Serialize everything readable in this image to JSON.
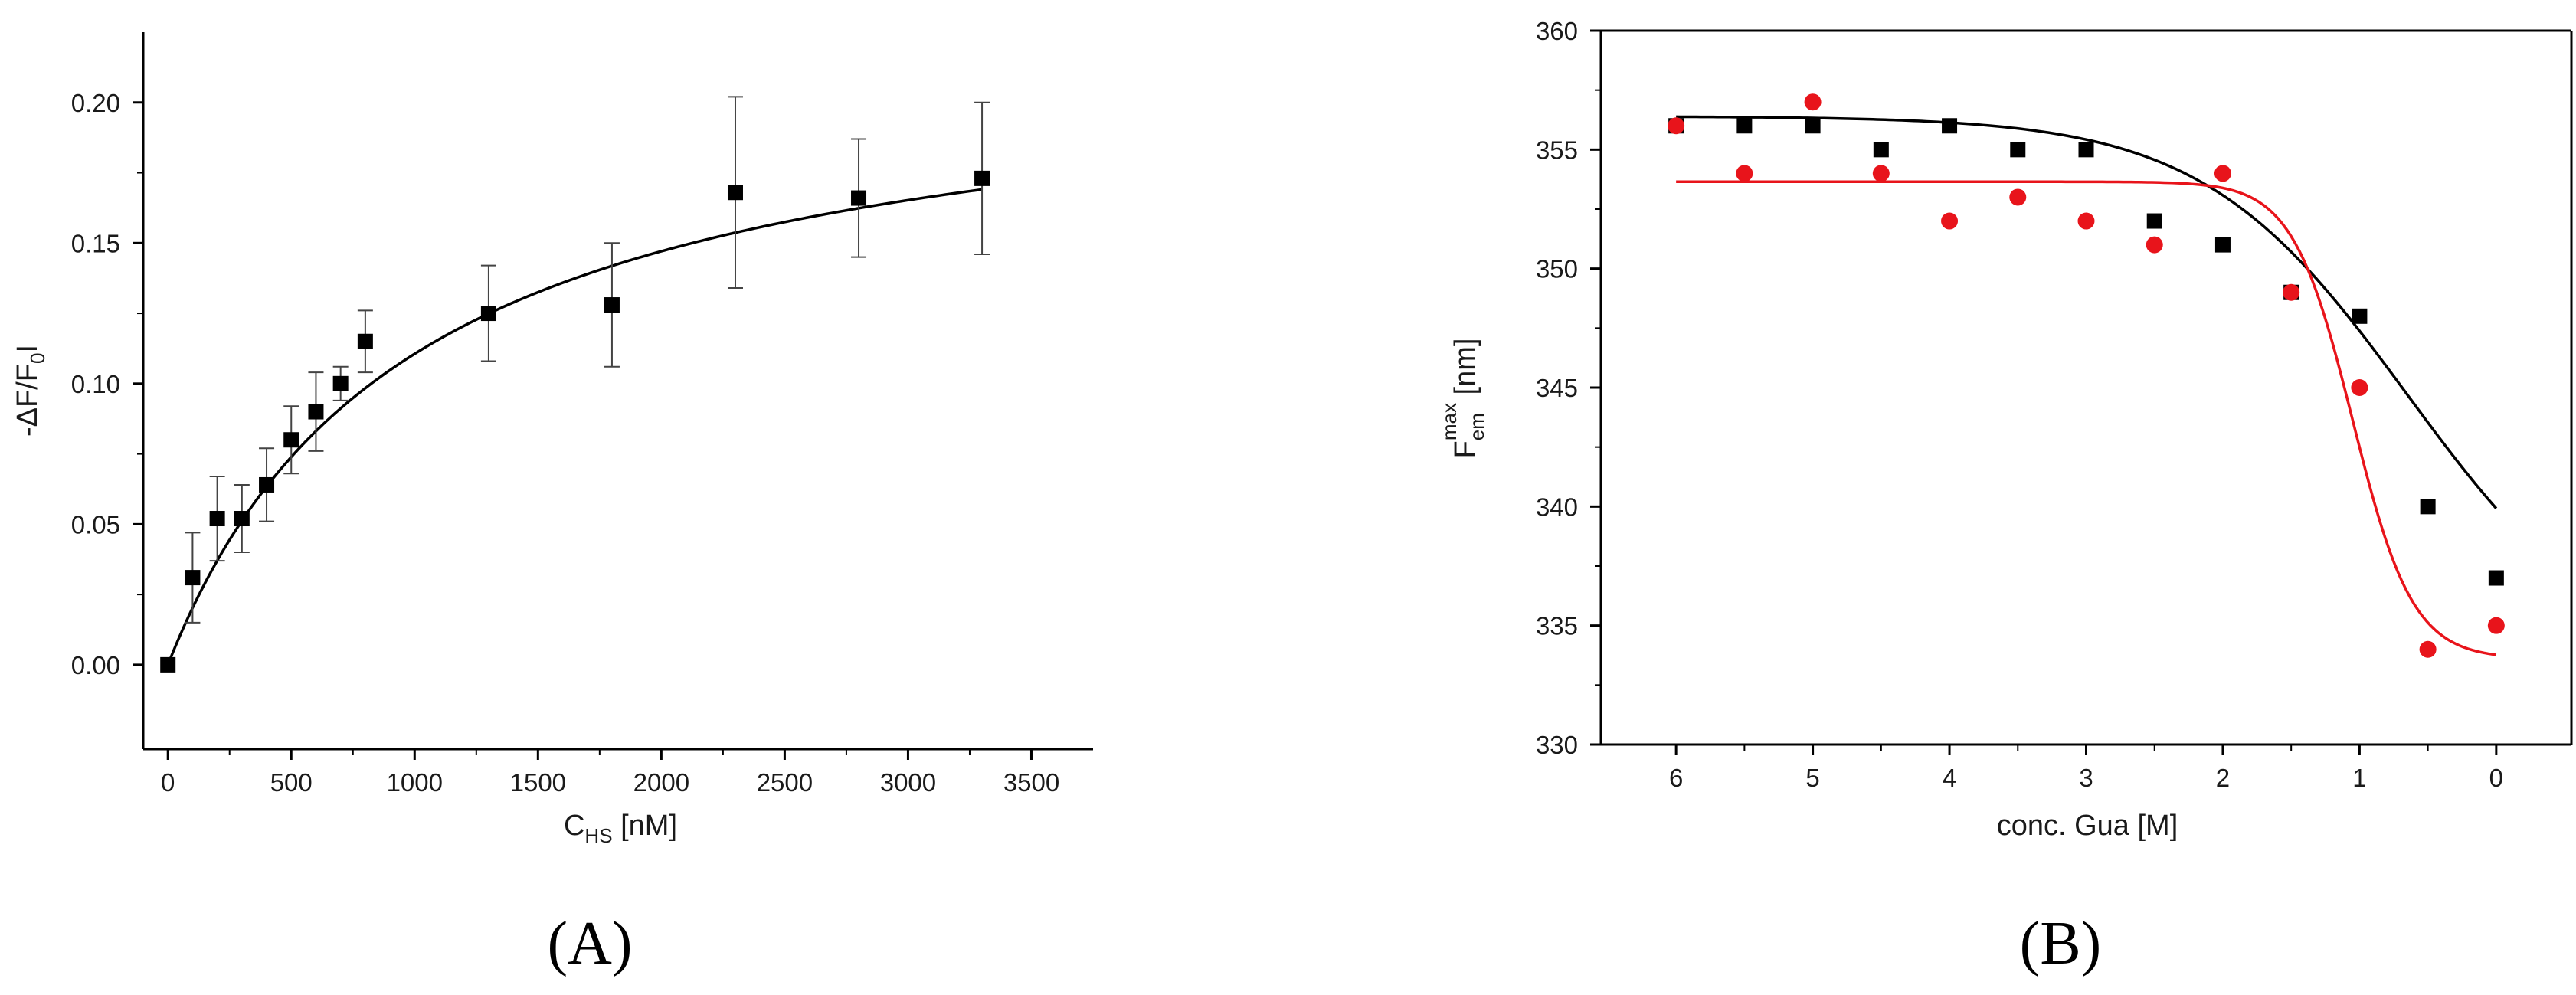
{
  "chart_data": [
    {
      "type": "scatter",
      "panel_label": "(A)",
      "ylabel": "-ΔF/F",
      "ylabel_sub": "0",
      "ylabel_suffix": "I",
      "xlabel": "C",
      "xlabel_sub": "HS",
      "xlabel_suffix": " [nM]",
      "xlim": [
        -100,
        3750
      ],
      "ylim": [
        -0.03,
        0.225
      ],
      "x_ticks": [
        0,
        500,
        1000,
        1500,
        2000,
        2500,
        3000,
        3500
      ],
      "x_tick_labels": [
        "0",
        "500",
        "1000",
        "1500",
        "2000",
        "2500",
        "3000",
        "3500"
      ],
      "y_ticks": [
        0.0,
        0.05,
        0.1,
        0.15,
        0.2
      ],
      "y_tick_labels": [
        "0.00",
        "0.05",
        "0.10",
        "0.15",
        "0.20"
      ],
      "grid": false,
      "series": [
        {
          "marker": "square",
          "color": "#000000",
          "x": [
            0,
            100,
            200,
            300,
            400,
            500,
            600,
            700,
            800,
            1300,
            1800,
            2300,
            2800,
            3300
          ],
          "y": [
            0.0,
            0.031,
            0.052,
            0.052,
            0.064,
            0.08,
            0.09,
            0.1,
            0.115,
            0.125,
            0.128,
            0.168,
            0.166,
            0.173
          ],
          "err": [
            0.0,
            0.016,
            0.015,
            0.012,
            0.013,
            0.012,
            0.014,
            0.006,
            0.011,
            0.017,
            0.022,
            0.034,
            0.021,
            0.027
          ]
        }
      ],
      "fit": {
        "type": "line",
        "color": "#000000",
        "model": "hyperbolic",
        "Bmax": 0.2195,
        "Kd": 985
      }
    },
    {
      "type": "scatter",
      "panel_label": "(B)",
      "ylabel": "F",
      "ylabel_sub": "em",
      "ylabel_sup": "max",
      "ylabel_suffix": " [nm]",
      "xlabel": "conc. Gua [M]",
      "xlim": [
        6.55,
        -0.55
      ],
      "ylim": [
        330,
        360
      ],
      "x_ticks": [
        6,
        5,
        4,
        3,
        2,
        1,
        0
      ],
      "x_tick_labels": [
        "6",
        "5",
        "4",
        "3",
        "2",
        "1",
        "0"
      ],
      "y_ticks": [
        330,
        335,
        340,
        345,
        350,
        355,
        360
      ],
      "y_tick_labels": [
        "330",
        "335",
        "340",
        "345",
        "350",
        "355",
        "360"
      ],
      "grid": false,
      "series": [
        {
          "marker": "square",
          "color": "#000000",
          "x": [
            6,
            5.5,
            5,
            4.5,
            4,
            3.5,
            3,
            2.5,
            2,
            1.5,
            1,
            0.5,
            0
          ],
          "y": [
            356,
            356,
            356,
            355,
            356,
            355,
            355,
            352,
            351,
            349,
            348,
            340,
            337
          ]
        },
        {
          "marker": "circle",
          "color": "#e8141b",
          "x": [
            6,
            5.5,
            5,
            4.5,
            4,
            3.5,
            3,
            2.5,
            2,
            1.5,
            1,
            0.5,
            0
          ],
          "y": [
            356,
            354,
            357,
            354,
            352,
            353,
            352,
            351,
            354,
            349,
            345,
            334,
            335
          ]
        }
      ],
      "fits": [
        {
          "color": "#000000",
          "model": "sigmoid",
          "top": 356.4,
          "bottom": 333.0,
          "mid": 0.65,
          "slope": 0.75
        },
        {
          "color": "#e8141b",
          "model": "sigmoid",
          "top": 353.65,
          "bottom": 333.6,
          "mid": 1.05,
          "slope": 0.22
        }
      ]
    }
  ]
}
